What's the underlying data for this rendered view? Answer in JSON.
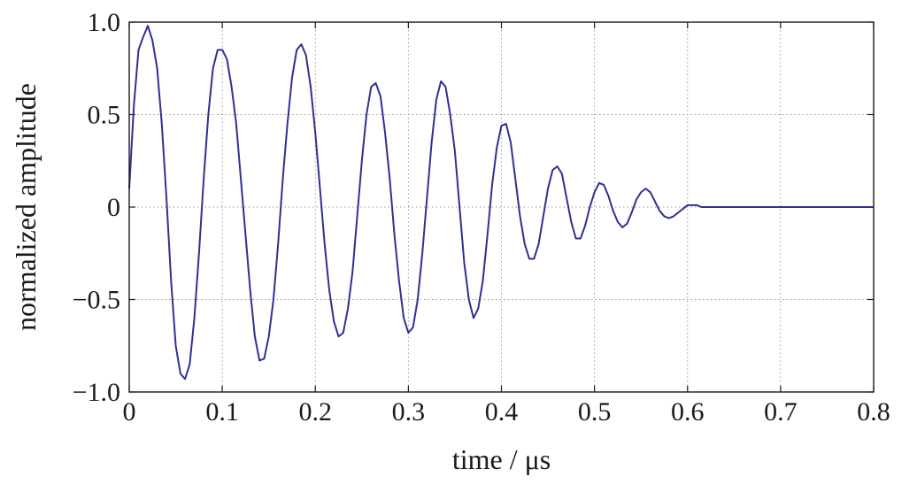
{
  "chart_data": {
    "type": "line",
    "title": "",
    "xlabel": "time / μs",
    "ylabel": "normalized amplitude",
    "xlim": [
      0,
      0.8
    ],
    "ylim": [
      -1.0,
      1.0
    ],
    "x_ticks": [
      0,
      0.1,
      0.2,
      0.3,
      0.4,
      0.5,
      0.6,
      0.7,
      0.8
    ],
    "x_tick_labels": [
      "0",
      "0.1",
      "0.2",
      "0.3",
      "0.4",
      "0.5",
      "0.6",
      "0.7",
      "0.8"
    ],
    "y_ticks": [
      1.0,
      0.5,
      0,
      -0.5,
      -1.0
    ],
    "y_tick_labels": [
      "1.0",
      "0.5",
      "0",
      "−0.5",
      "−1.0"
    ],
    "grid": true,
    "legend": "none",
    "series": [
      {
        "color": "#2e3192",
        "x": [
          0,
          0.005,
          0.01,
          0.015,
          0.02,
          0.025,
          0.03,
          0.035,
          0.04,
          0.045,
          0.05,
          0.055,
          0.06,
          0.065,
          0.07,
          0.075,
          0.08,
          0.085,
          0.09,
          0.095,
          0.1,
          0.105,
          0.11,
          0.115,
          0.12,
          0.125,
          0.13,
          0.135,
          0.14,
          0.145,
          0.15,
          0.155,
          0.16,
          0.165,
          0.17,
          0.175,
          0.18,
          0.185,
          0.19,
          0.195,
          0.2,
          0.205,
          0.21,
          0.215,
          0.22,
          0.225,
          0.23,
          0.235,
          0.24,
          0.245,
          0.25,
          0.255,
          0.26,
          0.265,
          0.27,
          0.275,
          0.28,
          0.285,
          0.29,
          0.295,
          0.3,
          0.305,
          0.31,
          0.315,
          0.32,
          0.325,
          0.33,
          0.335,
          0.34,
          0.345,
          0.35,
          0.355,
          0.36,
          0.365,
          0.37,
          0.375,
          0.38,
          0.385,
          0.39,
          0.395,
          0.4,
          0.405,
          0.41,
          0.415,
          0.42,
          0.425,
          0.43,
          0.435,
          0.44,
          0.445,
          0.45,
          0.455,
          0.46,
          0.465,
          0.47,
          0.475,
          0.48,
          0.485,
          0.49,
          0.495,
          0.5,
          0.505,
          0.51,
          0.515,
          0.52,
          0.525,
          0.53,
          0.535,
          0.54,
          0.545,
          0.55,
          0.555,
          0.56,
          0.565,
          0.57,
          0.575,
          0.58,
          0.585,
          0.59,
          0.595,
          0.6,
          0.605,
          0.61,
          0.615,
          0.62,
          0.625,
          0.63,
          0.635,
          0.64,
          0.645,
          0.65,
          0.655,
          0.66,
          0.665,
          0.67,
          0.675,
          0.68,
          0.685,
          0.69,
          0.695,
          0.7,
          0.705,
          0.71,
          0.715,
          0.72,
          0.725,
          0.73,
          0.735,
          0.74,
          0.745,
          0.75,
          0.755,
          0.76,
          0.765,
          0.77,
          0.775,
          0.78,
          0.785,
          0.79,
          0.795,
          0.8
        ],
        "y": [
          0.1,
          0.55,
          0.85,
          0.92,
          0.98,
          0.9,
          0.75,
          0.45,
          0.05,
          -0.4,
          -0.75,
          -0.9,
          -0.93,
          -0.85,
          -0.6,
          -0.25,
          0.15,
          0.5,
          0.75,
          0.85,
          0.85,
          0.8,
          0.65,
          0.45,
          0.15,
          -0.15,
          -0.45,
          -0.7,
          -0.83,
          -0.82,
          -0.7,
          -0.5,
          -0.2,
          0.15,
          0.45,
          0.7,
          0.85,
          0.88,
          0.82,
          0.65,
          0.4,
          0.1,
          -0.2,
          -0.45,
          -0.62,
          -0.7,
          -0.68,
          -0.55,
          -0.35,
          -0.05,
          0.25,
          0.5,
          0.65,
          0.67,
          0.6,
          0.4,
          0.15,
          -0.15,
          -0.4,
          -0.6,
          -0.68,
          -0.65,
          -0.5,
          -0.25,
          0.05,
          0.35,
          0.58,
          0.68,
          0.65,
          0.5,
          0.3,
          0.0,
          -0.3,
          -0.5,
          -0.6,
          -0.55,
          -0.4,
          -0.15,
          0.12,
          0.32,
          0.44,
          0.45,
          0.35,
          0.15,
          -0.05,
          -0.2,
          -0.28,
          -0.28,
          -0.2,
          -0.05,
          0.1,
          0.2,
          0.22,
          0.18,
          0.05,
          -0.08,
          -0.17,
          -0.17,
          -0.1,
          0.0,
          0.08,
          0.13,
          0.12,
          0.06,
          -0.02,
          -0.08,
          -0.11,
          -0.09,
          -0.03,
          0.04,
          0.08,
          0.1,
          0.08,
          0.03,
          -0.02,
          -0.05,
          -0.06,
          -0.05,
          -0.03,
          -0.01,
          0.01,
          0.01,
          0.01,
          0.0,
          0.0,
          0.0,
          0.0,
          0.0,
          0.0,
          0.0,
          0.0,
          0.0,
          0.0,
          0.0,
          0.0,
          0.0,
          0.0,
          0.0,
          0.0,
          0.0,
          0.0,
          0.0,
          0.0,
          0.0,
          0.0,
          0.0,
          0.0,
          0.0,
          0.0,
          0.0,
          0.0,
          0.0,
          0.0,
          0.0,
          0.0,
          0.0,
          0.0,
          0.0,
          0.0,
          0.0,
          0.0
        ]
      }
    ]
  }
}
